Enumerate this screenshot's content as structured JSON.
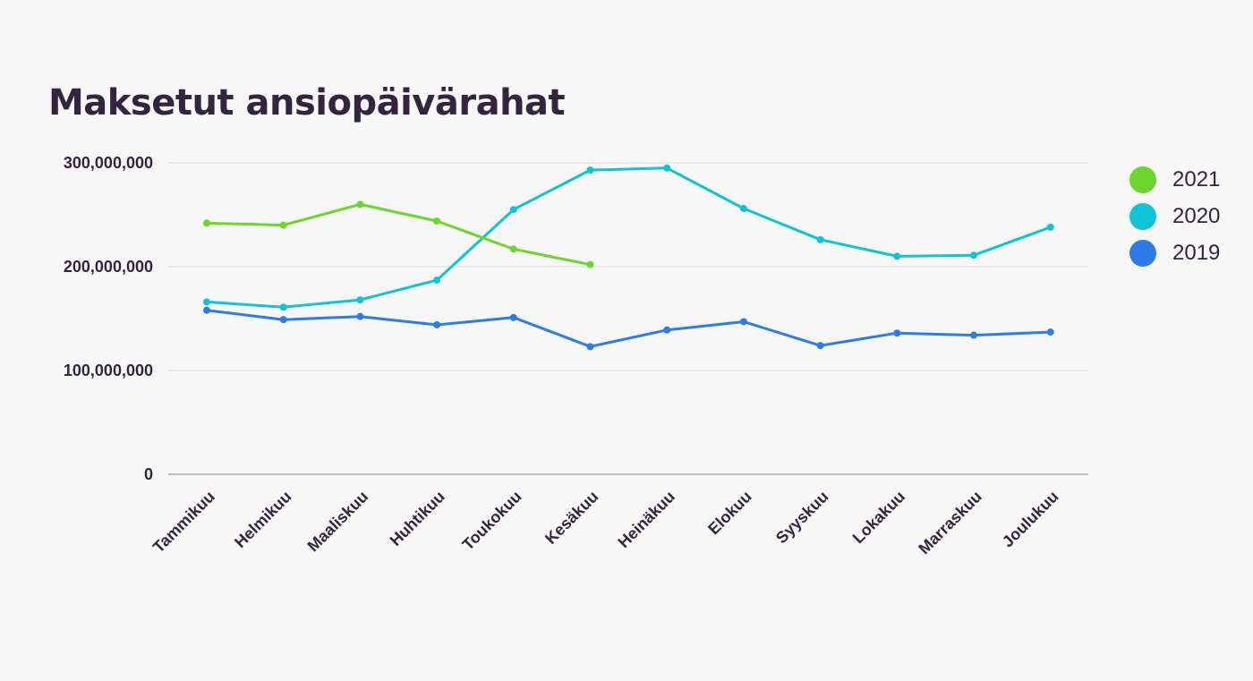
{
  "chart_data": {
    "type": "line",
    "title": "Maksetut ansiopäivärahat",
    "xlabel": "",
    "ylabel": "",
    "categories": [
      "Tammikuu",
      "Helmikuu",
      "Maaliskuu",
      "Huhtikuu",
      "Toukokuu",
      "Kesäkuu",
      "Heinäkuu",
      "Elokuu",
      "Syyskuu",
      "Lokakuu",
      "Marraskuu",
      "Joulukuu"
    ],
    "ylim": [
      0,
      300000000
    ],
    "yticks": [
      {
        "value": 0,
        "label": "0"
      },
      {
        "value": 100000000,
        "label": "100,000,000"
      },
      {
        "value": 200000000,
        "label": "200,000,000"
      },
      {
        "value": 300000000,
        "label": "300,000,000"
      }
    ],
    "grid": true,
    "legend_position": "right",
    "series": [
      {
        "name": "2021",
        "color": "#6dd62c",
        "values": [
          242000000,
          240000000,
          260000000,
          244000000,
          217000000,
          202000000,
          null,
          null,
          null,
          null,
          null,
          null
        ]
      },
      {
        "name": "2020",
        "color": "#0fc3d6",
        "values": [
          166000000,
          161000000,
          168000000,
          187000000,
          255000000,
          293000000,
          295000000,
          256000000,
          226000000,
          210000000,
          211000000,
          238000000
        ]
      },
      {
        "name": "2019",
        "color": "#2d7ce6",
        "values": [
          158000000,
          149000000,
          152000000,
          144000000,
          151000000,
          123000000,
          139000000,
          147000000,
          124000000,
          136000000,
          134000000,
          137000000
        ]
      }
    ]
  }
}
